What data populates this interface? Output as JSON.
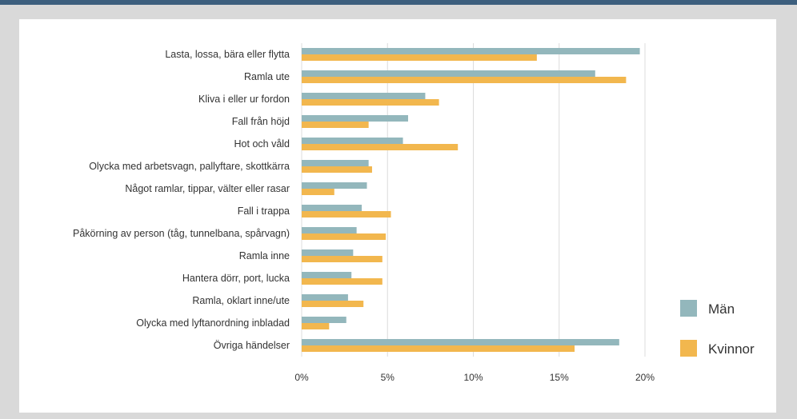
{
  "chart_data": {
    "type": "bar",
    "orientation": "horizontal",
    "categories": [
      "Lasta, lossa, bära eller flytta",
      "Ramla ute",
      "Kliva i eller ur fordon",
      "Fall från höjd",
      "Hot och våld",
      "Olycka med arbetsvagn, pallyftare, skottkärra",
      "Något ramlar, tippar, välter eller rasar",
      "Fall i trappa",
      "Påkörning av person (tåg, tunnelbana, spårvagn)",
      "Ramla inne",
      "Hantera dörr, port, lucka",
      "Ramla, oklart inne/ute",
      "Olycka med lyftanordning inbladad",
      "Övriga händelser"
    ],
    "series": [
      {
        "name": "Män",
        "color": "#93b7bc",
        "values": [
          19.7,
          17.1,
          7.2,
          6.2,
          5.9,
          3.9,
          3.8,
          3.5,
          3.2,
          3.0,
          2.9,
          2.7,
          2.6,
          18.5
        ]
      },
      {
        "name": "Kvinnor",
        "color": "#f2b74e",
        "values": [
          13.7,
          18.9,
          8.0,
          3.9,
          9.1,
          4.1,
          1.9,
          5.2,
          4.9,
          4.7,
          4.7,
          3.6,
          1.6,
          15.9
        ]
      }
    ],
    "xlim": [
      0,
      20
    ],
    "xticks": [
      "0%",
      "5%",
      "10%",
      "15%",
      "20%"
    ],
    "grid": true,
    "legend_position": "right"
  }
}
